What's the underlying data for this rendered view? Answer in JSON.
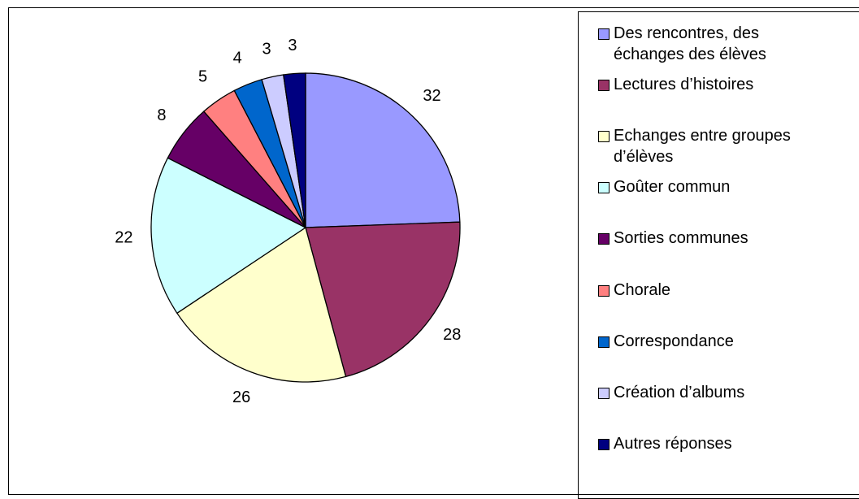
{
  "chart_data": {
    "type": "pie",
    "categories": [
      "Des rencontres, des échanges des élèves",
      "Lectures d’histoires",
      "Echanges entre groupes d’élèves",
      "Goûter commun",
      "Sorties communes",
      "Chorale",
      "Correspondance",
      "Création d’albums",
      "Autres réponses"
    ],
    "values": [
      32,
      28,
      26,
      22,
      8,
      5,
      4,
      3,
      3
    ],
    "colors": [
      "#9999ff",
      "#993366",
      "#ffffcc",
      "#ccffff",
      "#660066",
      "#ff8080",
      "#0066cc",
      "#ccccff",
      "#000080"
    ],
    "legend": "right"
  }
}
